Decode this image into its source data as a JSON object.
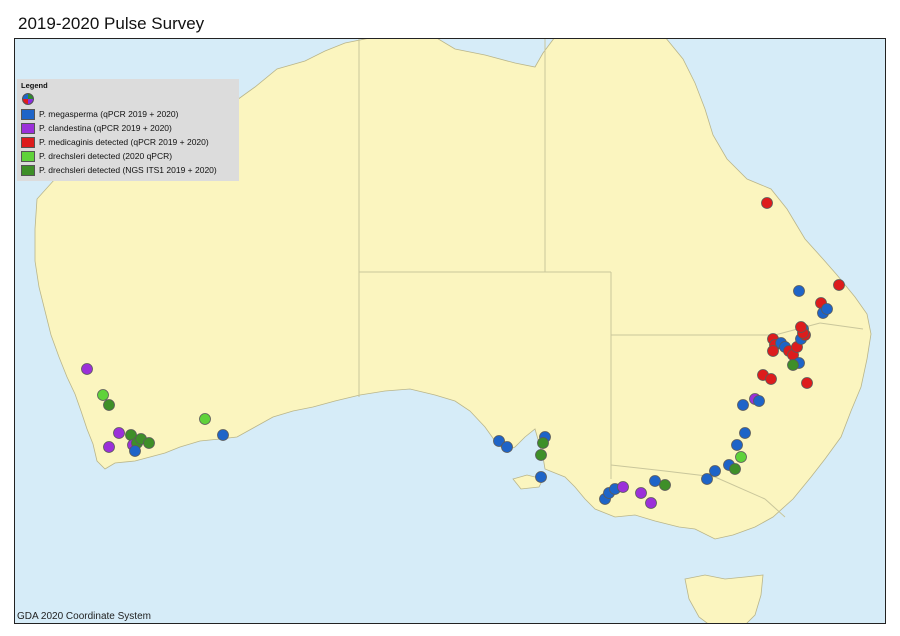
{
  "title": "2019-2020 Pulse Survey",
  "footer": "GDA 2020 Coordinate System",
  "colors": {
    "sea": "#d6ecf8",
    "land": "#fbf5bf",
    "border": "#c9c69b"
  },
  "legend": {
    "title": "Legend",
    "items": [
      {
        "label": "P. megasperma (qPCR 2019 + 2020)",
        "color": "#1e64c8"
      },
      {
        "label": "P. clandestina (qPCR 2019 + 2020)",
        "color": "#9b30d9"
      },
      {
        "label": "P. medicaginis detected (qPCR 2019 + 2020)",
        "color": "#dd1c1c"
      },
      {
        "label": "P. drechsleri detected (2020 qPCR)",
        "color": "#5fd23a"
      },
      {
        "label": "P. drechsleri detected (NGS ITS1 2019 + 2020)",
        "color": "#3e8f28"
      }
    ]
  }
}
